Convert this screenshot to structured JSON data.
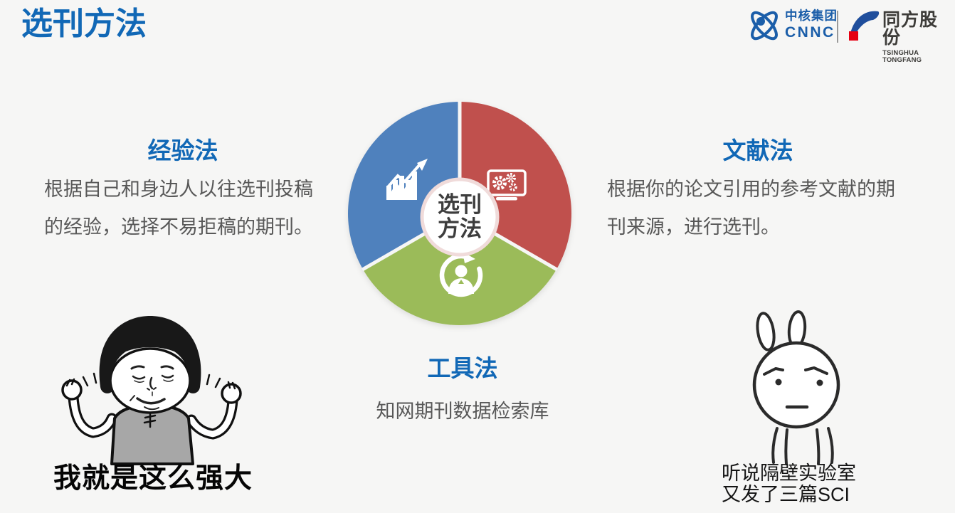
{
  "slide": {
    "title": "选刊方法"
  },
  "header_logos": {
    "cnnc": {
      "company_cn": "中核集团",
      "company_en": "CNNC"
    },
    "tongfang": {
      "company_cn": "同方股份",
      "company_en": "TSINGHUA TONGFANG"
    }
  },
  "chart_data": {
    "type": "pie",
    "title": "选刊方法",
    "description": "Three equal segments representing journal selection methods",
    "center_label_line1": "选刊",
    "center_label_line2": "方法",
    "legend_position": "around",
    "segments": [
      {
        "label": "经验法",
        "value": 33.3,
        "color": "#4f81bd",
        "start": 240,
        "end": 360,
        "icon": "growth-chart"
      },
      {
        "label": "文献法",
        "value": 33.3,
        "color": "#c0504d",
        "start": 0,
        "end": 120,
        "icon": "monitor-gears"
      },
      {
        "label": "工具法",
        "value": 33.3,
        "color": "#9bbb59",
        "start": 120,
        "end": 240,
        "icon": "person-cycle"
      }
    ]
  },
  "methods": {
    "experience": {
      "title": "经验法",
      "description": "根据自己和身边人以往选刊投稿的经验，选择不易拒稿的期刊。"
    },
    "literature": {
      "title": "文献法",
      "description": "根据你的论文引用的参考文献的期刊来源，进行选刊。"
    },
    "tool": {
      "title": "工具法",
      "description": "知网期刊数据检索库"
    }
  },
  "memes": {
    "left": {
      "caption": "我就是这么强大"
    },
    "right": {
      "caption_line1": "听说隔壁实验室",
      "caption_line2": "又发了三篇SCI"
    }
  },
  "colors": {
    "background": "#f6f6f5",
    "accent_blue": "#1168b6",
    "pie_blue": "#4f81bd",
    "pie_red": "#c0504d",
    "pie_green": "#9bbb59",
    "center_ring": "#f0dbda",
    "body_text": "#585858",
    "cnnc_blue": "#1b5ea9",
    "tongfang_blue": "#1f4e9c",
    "tongfang_red": "#e60012"
  }
}
